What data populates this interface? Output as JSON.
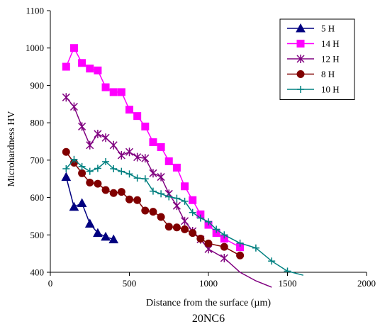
{
  "chart_data": {
    "type": "line",
    "caption": "20NC6",
    "xlabel": "Distance from the surface (µm)",
    "ylabel": "Microhardness HV",
    "xlim": [
      0,
      2000
    ],
    "ylim": [
      400,
      1100
    ],
    "x_ticks": [
      0,
      500,
      1000,
      1500,
      2000
    ],
    "y_ticks": [
      400,
      500,
      600,
      700,
      800,
      900,
      1000,
      1100
    ],
    "x_tick_labels": [
      "0",
      "500",
      "1000",
      "1500",
      "2000"
    ],
    "y_tick_labels": [
      "400",
      "500",
      "600",
      "700",
      "800",
      "900",
      "1000",
      "1100"
    ],
    "grid": false,
    "legend_position": "top-right",
    "series": [
      {
        "name": "5 H",
        "color": "#000080",
        "marker": "triangle",
        "points": [
          [
            100,
            655
          ],
          [
            150,
            575
          ],
          [
            200,
            585
          ],
          [
            250,
            530
          ],
          [
            300,
            505
          ],
          [
            350,
            495
          ],
          [
            400,
            488
          ]
        ]
      },
      {
        "name": "14 H",
        "color": "#ff00ff",
        "marker": "square",
        "points": [
          [
            100,
            950
          ],
          [
            150,
            1000
          ],
          [
            200,
            960
          ],
          [
            250,
            945
          ],
          [
            300,
            940
          ],
          [
            350,
            895
          ],
          [
            400,
            882
          ],
          [
            450,
            882
          ],
          [
            500,
            835
          ],
          [
            550,
            818
          ],
          [
            600,
            790
          ],
          [
            650,
            748
          ],
          [
            700,
            735
          ],
          [
            750,
            697
          ],
          [
            800,
            680
          ],
          [
            850,
            630
          ],
          [
            900,
            593
          ],
          [
            950,
            555
          ],
          [
            1000,
            527
          ],
          [
            1050,
            505
          ],
          [
            1100,
            490
          ],
          [
            1200,
            467
          ]
        ]
      },
      {
        "name": "12 H",
        "color": "#800080",
        "marker": "star",
        "points": [
          [
            100,
            868
          ],
          [
            150,
            843
          ],
          [
            200,
            790
          ],
          [
            250,
            740
          ],
          [
            300,
            770
          ],
          [
            350,
            760
          ],
          [
            400,
            740
          ],
          [
            450,
            713
          ],
          [
            500,
            722
          ],
          [
            550,
            708
          ],
          [
            600,
            705
          ],
          [
            650,
            665
          ],
          [
            700,
            655
          ],
          [
            750,
            610
          ],
          [
            800,
            578
          ],
          [
            850,
            537
          ],
          [
            900,
            510
          ],
          [
            950,
            488
          ],
          [
            1000,
            462
          ],
          [
            1100,
            438
          ],
          [
            1200,
            400
          ],
          [
            1300,
            377
          ],
          [
            1400,
            360
          ]
        ],
        "marker_count": 20
      },
      {
        "name": "8 H",
        "color": "#800000",
        "marker": "circle",
        "points": [
          [
            100,
            722
          ],
          [
            150,
            693
          ],
          [
            200,
            665
          ],
          [
            250,
            640
          ],
          [
            300,
            637
          ],
          [
            350,
            620
          ],
          [
            400,
            612
          ],
          [
            450,
            615
          ],
          [
            500,
            595
          ],
          [
            550,
            593
          ],
          [
            600,
            565
          ],
          [
            650,
            562
          ],
          [
            700,
            548
          ],
          [
            750,
            522
          ],
          [
            800,
            520
          ],
          [
            850,
            515
          ],
          [
            900,
            505
          ],
          [
            950,
            490
          ],
          [
            1000,
            477
          ],
          [
            1100,
            468
          ],
          [
            1200,
            445
          ]
        ]
      },
      {
        "name": "10 H",
        "color": "#008080",
        "marker": "plus",
        "points": [
          [
            100,
            677
          ],
          [
            150,
            702
          ],
          [
            200,
            683
          ],
          [
            250,
            670
          ],
          [
            300,
            678
          ],
          [
            350,
            696
          ],
          [
            400,
            677
          ],
          [
            450,
            670
          ],
          [
            500,
            663
          ],
          [
            550,
            652
          ],
          [
            600,
            650
          ],
          [
            650,
            617
          ],
          [
            700,
            610
          ],
          [
            750,
            602
          ],
          [
            800,
            598
          ],
          [
            850,
            590
          ],
          [
            900,
            560
          ],
          [
            950,
            545
          ],
          [
            1000,
            535
          ],
          [
            1050,
            515
          ],
          [
            1100,
            500
          ],
          [
            1200,
            478
          ],
          [
            1300,
            465
          ],
          [
            1400,
            430
          ],
          [
            1500,
            403
          ],
          [
            1600,
            392
          ]
        ],
        "marker_count": 25
      }
    ]
  }
}
